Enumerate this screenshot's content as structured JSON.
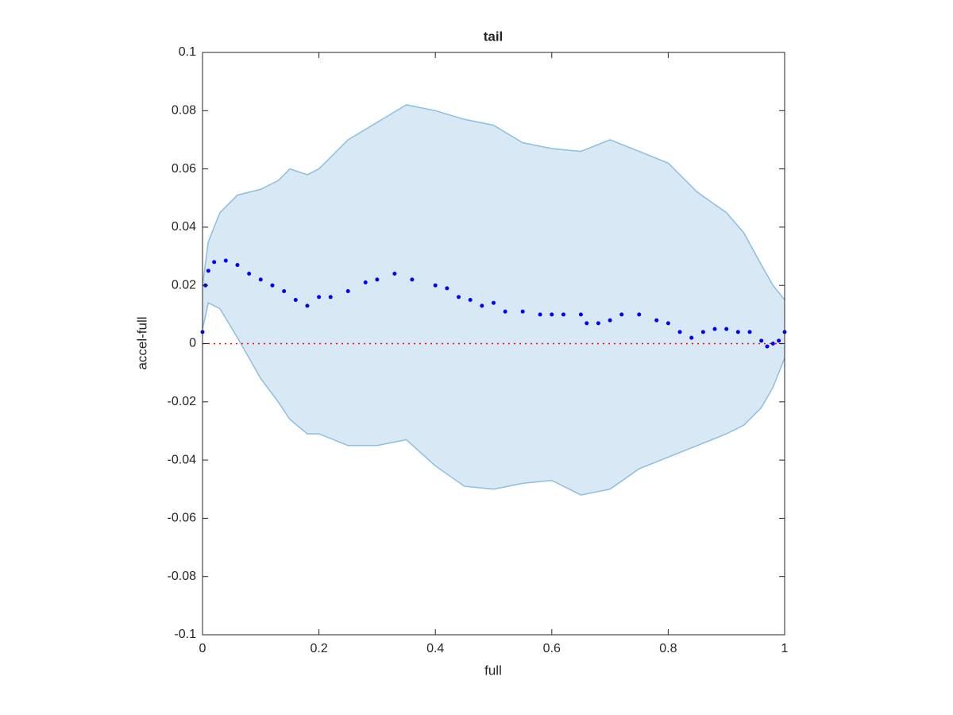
{
  "chart_data": {
    "type": "scatter",
    "title": "tail",
    "xlabel": "full",
    "ylabel": "accel-full",
    "xlim": [
      0,
      1
    ],
    "ylim": [
      -0.1,
      0.1
    ],
    "xticks": [
      0,
      0.2,
      0.4,
      0.6,
      0.8,
      1
    ],
    "yticks": [
      -0.1,
      -0.08,
      -0.06,
      -0.04,
      -0.02,
      0,
      0.02,
      0.04,
      0.06,
      0.08,
      0.1
    ],
    "band": {
      "color": "#8bbfe0",
      "fill": "#d9e8f5",
      "x": [
        0,
        0.01,
        0.03,
        0.06,
        0.1,
        0.13,
        0.15,
        0.18,
        0.2,
        0.25,
        0.3,
        0.35,
        0.4,
        0.45,
        0.5,
        0.55,
        0.6,
        0.65,
        0.7,
        0.75,
        0.8,
        0.85,
        0.9,
        0.93,
        0.96,
        0.98,
        1
      ],
      "upper": [
        0.02,
        0.035,
        0.045,
        0.051,
        0.053,
        0.056,
        0.06,
        0.058,
        0.06,
        0.07,
        0.076,
        0.082,
        0.08,
        0.077,
        0.075,
        0.069,
        0.067,
        0.066,
        0.07,
        0.066,
        0.062,
        0.052,
        0.045,
        0.038,
        0.027,
        0.02,
        0.015
      ],
      "lower": [
        0.005,
        0.014,
        0.012,
        0.002,
        -0.012,
        -0.02,
        -0.026,
        -0.031,
        -0.031,
        -0.035,
        -0.035,
        -0.033,
        -0.042,
        -0.049,
        -0.05,
        -0.048,
        -0.047,
        -0.052,
        -0.05,
        -0.043,
        -0.039,
        -0.035,
        -0.031,
        -0.028,
        -0.022,
        -0.015,
        -0.005
      ]
    },
    "points": {
      "color": "#0000ff",
      "x": [
        0,
        0.005,
        0.01,
        0.02,
        0.04,
        0.06,
        0.08,
        0.1,
        0.12,
        0.14,
        0.16,
        0.18,
        0.2,
        0.22,
        0.25,
        0.28,
        0.3,
        0.33,
        0.36,
        0.4,
        0.42,
        0.44,
        0.46,
        0.48,
        0.5,
        0.52,
        0.55,
        0.58,
        0.6,
        0.62,
        0.65,
        0.66,
        0.68,
        0.7,
        0.72,
        0.75,
        0.78,
        0.8,
        0.82,
        0.84,
        0.86,
        0.88,
        0.9,
        0.92,
        0.94,
        0.96,
        0.97,
        0.98,
        0.99,
        1
      ],
      "y": [
        0.004,
        0.02,
        0.025,
        0.028,
        0.0285,
        0.027,
        0.024,
        0.022,
        0.02,
        0.018,
        0.015,
        0.013,
        0.016,
        0.016,
        0.018,
        0.021,
        0.022,
        0.024,
        0.022,
        0.02,
        0.019,
        0.016,
        0.015,
        0.013,
        0.014,
        0.011,
        0.011,
        0.01,
        0.01,
        0.01,
        0.01,
        0.007,
        0.007,
        0.008,
        0.01,
        0.01,
        0.008,
        0.007,
        0.004,
        0.002,
        0.004,
        0.005,
        0.005,
        0.004,
        0.004,
        0.001,
        -0.001,
        0,
        0.001,
        0.004
      ]
    },
    "reference_line": {
      "y": 0,
      "color": "#ff0000"
    }
  }
}
